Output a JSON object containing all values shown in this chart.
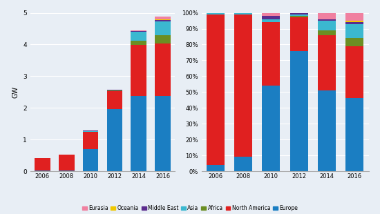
{
  "years": [
    2006,
    2008,
    2010,
    2012,
    2014,
    2016
  ],
  "abs_data": {
    "Europe": [
      0.02,
      0.02,
      0.7,
      1.97,
      2.38,
      2.38
    ],
    "North America": [
      0.4,
      0.5,
      0.55,
      0.55,
      1.6,
      1.65
    ],
    "Africa": [
      0.0,
      0.0,
      0.0,
      0.02,
      0.14,
      0.26
    ],
    "Asia": [
      0.0,
      0.0,
      0.02,
      0.02,
      0.28,
      0.44
    ],
    "Middle East": [
      0.0,
      0.0,
      0.02,
      0.02,
      0.03,
      0.04
    ],
    "Oceania": [
      0.0,
      0.0,
      0.0,
      0.0,
      0.005,
      0.015
    ],
    "Eurasia": [
      0.0,
      0.0,
      0.0,
      0.0,
      0.01,
      0.09
    ]
  },
  "pct_data": {
    "Europe": [
      4,
      9,
      54,
      76,
      51,
      46
    ],
    "North America": [
      95,
      90,
      40,
      21,
      35,
      33
    ],
    "Africa": [
      0,
      0,
      0,
      1,
      3,
      5
    ],
    "Asia": [
      1,
      1,
      2,
      1,
      6,
      9
    ],
    "Middle East": [
      0,
      0,
      2,
      1,
      1,
      1
    ],
    "Oceania": [
      0,
      0,
      0,
      0,
      0,
      1
    ],
    "Eurasia": [
      0,
      0,
      2,
      1,
      4,
      5
    ]
  },
  "colors": {
    "Europe": "#1B7EC2",
    "North America": "#E02020",
    "Africa": "#6B8E23",
    "Asia": "#3BB8D0",
    "Middle East": "#5B2C8D",
    "Oceania": "#F0C800",
    "Eurasia": "#F080A0"
  },
  "stack_order": [
    "Europe",
    "North America",
    "Africa",
    "Asia",
    "Middle East",
    "Oceania",
    "Eurasia"
  ],
  "legend_order": [
    "Eurasia",
    "Oceania",
    "Middle East",
    "Asia",
    "Africa",
    "North America",
    "Europe"
  ],
  "bg_color": "#E8EEF5",
  "ylim_abs": [
    0,
    5
  ],
  "ylim_pct": [
    0,
    100
  ],
  "ylabel_abs": "GW"
}
